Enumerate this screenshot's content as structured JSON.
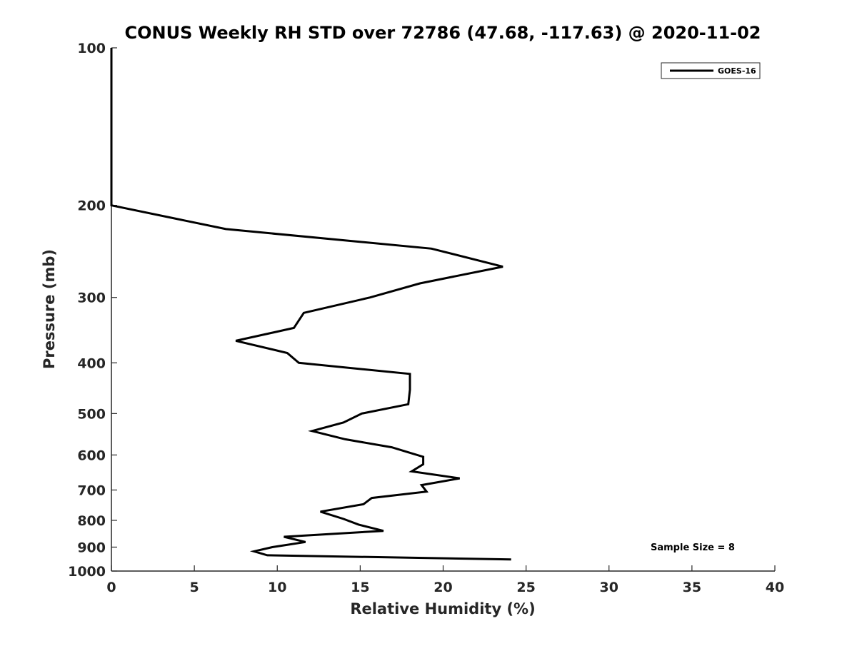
{
  "chart_data": {
    "type": "line",
    "title": "CONUS Weekly RH STD over 72786 (47.68, -117.63) @ 2020-11-02",
    "xlabel": "Relative Humidity (%)",
    "ylabel": "Pressure (mb)",
    "xlim": [
      0,
      40
    ],
    "ylim": [
      100,
      1000
    ],
    "yscale": "log",
    "y_reversed": true,
    "grid": false,
    "legend_position": "top-right",
    "x_ticks": [
      0,
      5,
      10,
      15,
      20,
      25,
      30,
      35,
      40
    ],
    "x_tick_labels": [
      "0",
      "5",
      "10",
      "15",
      "20",
      "25",
      "30",
      "35",
      "40"
    ],
    "y_ticks": [
      100,
      200,
      300,
      400,
      500,
      600,
      700,
      800,
      900,
      1000
    ],
    "y_tick_labels": [
      "100",
      "200",
      "300",
      "400",
      "500",
      "600",
      "700",
      "800",
      "900",
      "1000"
    ],
    "series": [
      {
        "name": "GOES-16",
        "color": "#000000",
        "x": [
          0.0,
          0.0,
          0.0,
          0.0,
          0.0,
          0.0,
          6.9,
          19.3,
          23.6,
          18.6,
          15.6,
          11.6,
          11.0,
          7.5,
          10.6,
          11.3,
          18.0,
          18.0,
          17.9,
          15.1,
          14.0,
          12.1,
          14.1,
          16.9,
          18.8,
          18.8,
          18.1,
          21.0,
          18.7,
          19.0,
          15.7,
          15.2,
          12.6,
          14.0,
          14.9,
          16.4,
          10.4,
          11.7,
          9.7,
          8.6,
          9.4,
          24.1
        ],
        "y": [
          100,
          130,
          150,
          170,
          185,
          200,
          222,
          242,
          262,
          282,
          300,
          321,
          343,
          363,
          383,
          400,
          420,
          450,
          480,
          500,
          520,
          540,
          560,
          580,
          605,
          625,
          645,
          665,
          685,
          705,
          725,
          745,
          770,
          795,
          815,
          838,
          860,
          880,
          900,
          917,
          933,
          950
        ]
      }
    ],
    "annotations": [
      "Sample Size = 8"
    ]
  }
}
